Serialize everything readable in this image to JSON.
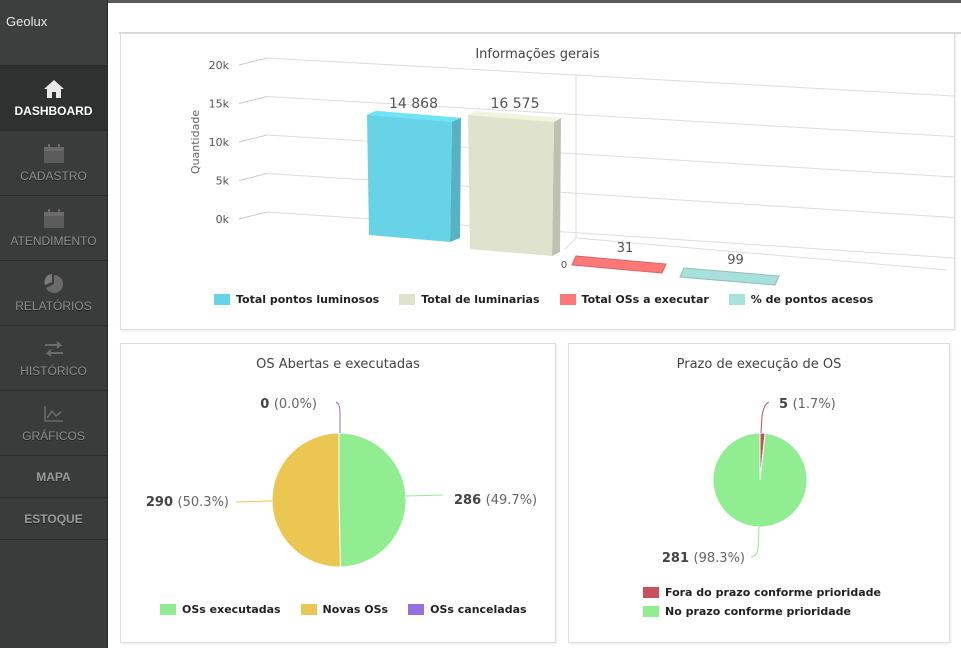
{
  "app": {
    "brand": "Geolux"
  },
  "sidebar": {
    "items": [
      {
        "label": "DASHBOARD",
        "icon": "home-icon",
        "active": true
      },
      {
        "label": "CADASTRO",
        "icon": "calendar-icon"
      },
      {
        "label": "ATENDIMENTO",
        "icon": "calendar-icon"
      },
      {
        "label": "RELATÓRIOS",
        "icon": "pie-chart-icon"
      },
      {
        "label": "HISTÓRICO",
        "icon": "exchange-arrows-icon"
      },
      {
        "label": "GRÁFICOS",
        "icon": "line-chart-icon"
      },
      {
        "label": "MAPA"
      },
      {
        "label": "ESTOQUE"
      }
    ]
  },
  "chart_data": [
    {
      "type": "bar",
      "title": "Informações gerais",
      "ylabel": "Quantidade",
      "ylim": [
        0,
        20000
      ],
      "yticks": [
        "0k",
        "5k",
        "10k",
        "15k",
        "20k"
      ],
      "x_tick_label": "0",
      "categories": [
        "Total pontos luminosos",
        "Total de luminarias",
        "Total OSs a executar",
        "% de pontos acesos"
      ],
      "values": [
        14868,
        16575,
        31,
        99
      ],
      "data_labels": [
        "14 868",
        "16 575",
        "31",
        "99"
      ],
      "colors": [
        "#66d3e7",
        "#dfe3cd",
        "#ff7777",
        "#a8e0dc"
      ],
      "legend_position": "bottom"
    },
    {
      "type": "pie",
      "title": "OS Abertas e executadas",
      "labels": [
        "OSs executadas",
        "Novas OSs",
        "OSs canceladas"
      ],
      "values": [
        286,
        290,
        0
      ],
      "percents": [
        "49.7%",
        "50.3%",
        "0.0%"
      ],
      "colors": [
        "#90ee90",
        "#ebc752",
        "#9370db"
      ],
      "legend_position": "bottom"
    },
    {
      "type": "pie",
      "title": "Prazo de execução de OS",
      "labels": [
        "Fora do prazo conforme prioridade",
        "No prazo conforme prioridade"
      ],
      "values": [
        5,
        281
      ],
      "percents": [
        "1.7%",
        "98.3%"
      ],
      "colors": [
        "#c8505a",
        "#90ee90"
      ],
      "legend_position": "bottom"
    }
  ]
}
